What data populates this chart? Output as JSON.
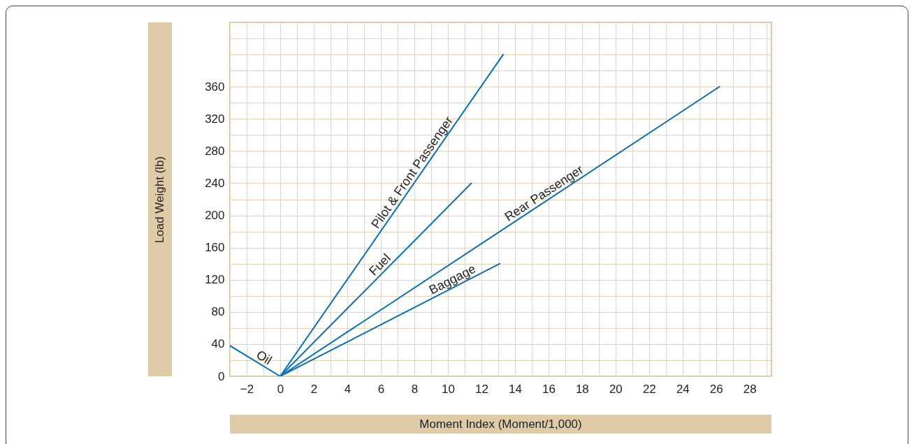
{
  "chart_data": {
    "type": "line",
    "xlabel": "Moment Index (Moment/1,000)",
    "ylabel": "Load Weight (lb)",
    "xlim": [
      -3,
      29.3
    ],
    "ylim": [
      0,
      440
    ],
    "xticks": [
      -2,
      0,
      2,
      4,
      6,
      8,
      10,
      12,
      14,
      16,
      18,
      20,
      22,
      24,
      26,
      28
    ],
    "yticks": [
      0,
      40,
      80,
      120,
      160,
      200,
      240,
      280,
      320,
      360
    ],
    "grid": true,
    "line_style": "solid",
    "series": [
      {
        "name": "Oil",
        "color": "#0a6fb5",
        "x": [
          -3,
          0
        ],
        "values": [
          38,
          0
        ]
      },
      {
        "name": "Pilot & Front Passenger",
        "color": "#0a6fb5",
        "x": [
          0,
          13.3
        ],
        "values": [
          0,
          400
        ]
      },
      {
        "name": "Fuel",
        "color": "#0a6fb5",
        "x": [
          0,
          11.4
        ],
        "values": [
          0,
          240
        ]
      },
      {
        "name": "Rear Passenger",
        "color": "#0a6fb5",
        "x": [
          0,
          26.2
        ],
        "values": [
          0,
          360
        ]
      },
      {
        "name": "Baggage",
        "color": "#0a6fb5",
        "x": [
          0,
          13.1
        ],
        "values": [
          0,
          140
        ]
      }
    ]
  }
}
